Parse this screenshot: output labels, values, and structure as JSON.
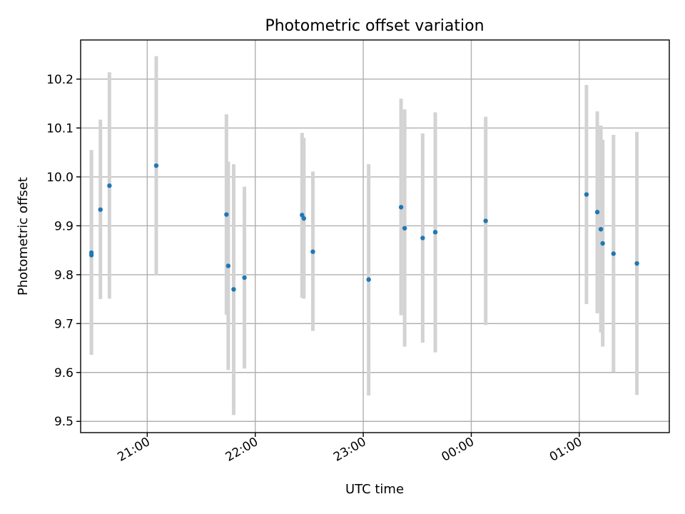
{
  "chart_data": {
    "type": "scatter",
    "title": "Photometric offset variation",
    "xlabel": "UTC time",
    "ylabel": "Photometric offset",
    "grid": true,
    "xlim": [
      "20:23",
      "01:50"
    ],
    "ylim": [
      9.477,
      10.28
    ],
    "xticks": [
      "21:00",
      "22:00",
      "23:00",
      "00:00",
      "01:00"
    ],
    "yticks": [
      "9.5",
      "9.6",
      "9.7",
      "9.8",
      "9.9",
      "10.0",
      "10.1",
      "10.2"
    ],
    "error_bar_color": "#d3d3d3",
    "marker_color": "#1f77b4",
    "points": [
      {
        "x": "20:29",
        "y": 9.845,
        "yerr_low": 9.636,
        "yerr_high": 10.055
      },
      {
        "x": "20:29",
        "y": 9.84,
        "yerr_low": 9.64,
        "yerr_high": 10.045
      },
      {
        "x": "20:34",
        "y": 9.933,
        "yerr_low": 9.75,
        "yerr_high": 10.117
      },
      {
        "x": "20:39",
        "y": 9.982,
        "yerr_low": 9.751,
        "yerr_high": 10.214
      },
      {
        "x": "21:05",
        "y": 10.023,
        "yerr_low": 9.798,
        "yerr_high": 10.247
      },
      {
        "x": "21:44",
        "y": 9.923,
        "yerr_low": 9.718,
        "yerr_high": 10.128
      },
      {
        "x": "21:45",
        "y": 9.818,
        "yerr_low": 9.605,
        "yerr_high": 10.031
      },
      {
        "x": "21:48",
        "y": 9.77,
        "yerr_low": 9.513,
        "yerr_high": 10.026
      },
      {
        "x": "21:54",
        "y": 9.794,
        "yerr_low": 9.608,
        "yerr_high": 9.98
      },
      {
        "x": "22:26",
        "y": 9.922,
        "yerr_low": 9.753,
        "yerr_high": 10.09
      },
      {
        "x": "22:27",
        "y": 9.915,
        "yerr_low": 9.751,
        "yerr_high": 10.08
      },
      {
        "x": "22:32",
        "y": 9.847,
        "yerr_low": 9.685,
        "yerr_high": 10.011
      },
      {
        "x": "23:03",
        "y": 9.79,
        "yerr_low": 9.553,
        "yerr_high": 10.026
      },
      {
        "x": "23:21",
        "y": 9.938,
        "yerr_low": 9.717,
        "yerr_high": 10.16
      },
      {
        "x": "23:23",
        "y": 9.895,
        "yerr_low": 9.653,
        "yerr_high": 10.138
      },
      {
        "x": "23:33",
        "y": 9.875,
        "yerr_low": 9.661,
        "yerr_high": 10.089
      },
      {
        "x": "23:40",
        "y": 9.887,
        "yerr_low": 9.641,
        "yerr_high": 10.132
      },
      {
        "x": "00:08",
        "y": 9.91,
        "yerr_low": 9.697,
        "yerr_high": 10.123
      },
      {
        "x": "01:04",
        "y": 9.964,
        "yerr_low": 9.74,
        "yerr_high": 10.188
      },
      {
        "x": "01:10",
        "y": 9.928,
        "yerr_low": 9.721,
        "yerr_high": 10.134
      },
      {
        "x": "01:12",
        "y": 9.893,
        "yerr_low": 9.682,
        "yerr_high": 10.105
      },
      {
        "x": "01:13",
        "y": 9.864,
        "yerr_low": 9.653,
        "yerr_high": 10.076
      },
      {
        "x": "01:19",
        "y": 9.843,
        "yerr_low": 9.601,
        "yerr_high": 10.086
      },
      {
        "x": "01:32",
        "y": 9.823,
        "yerr_low": 9.554,
        "yerr_high": 10.092
      }
    ]
  }
}
